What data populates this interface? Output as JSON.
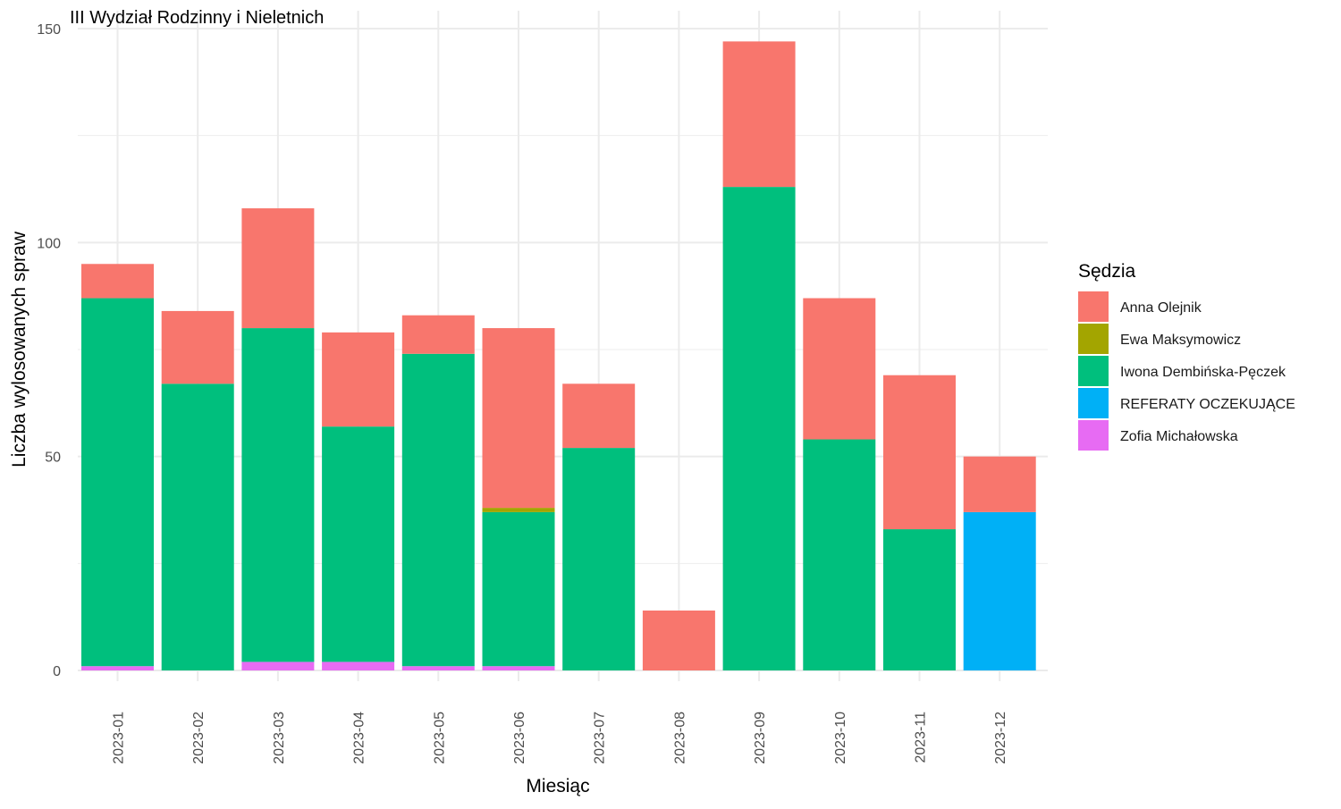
{
  "chart_data": {
    "type": "bar",
    "stacked": true,
    "title": "III Wydział Rodzinny i Nieletnich",
    "xlabel": "Miesiąc",
    "ylabel": "Liczba wylosowanych spraw",
    "ylim": [
      0,
      150
    ],
    "yticks": [
      0,
      50,
      100,
      150
    ],
    "grid": true,
    "legend_title": "Sędzia",
    "legend_position": "right",
    "categories": [
      "2023-01",
      "2023-02",
      "2023-03",
      "2023-04",
      "2023-05",
      "2023-06",
      "2023-07",
      "2023-08",
      "2023-09",
      "2023-10",
      "2023-11",
      "2023-12"
    ],
    "series": [
      {
        "name": "Zofia Michałowska",
        "color": "#E76BF3",
        "values": [
          1,
          0,
          2,
          2,
          1,
          1,
          0,
          0,
          0,
          0,
          0,
          0
        ]
      },
      {
        "name": "REFERATY OCZEKUJĄCE",
        "color": "#00B0F6",
        "values": [
          0,
          0,
          0,
          0,
          0,
          0,
          0,
          0,
          0,
          0,
          0,
          37
        ]
      },
      {
        "name": "Iwona Dembińska-Pęczek",
        "color": "#00BF7D",
        "values": [
          86,
          67,
          78,
          55,
          73,
          36,
          52,
          0,
          113,
          54,
          33,
          0
        ]
      },
      {
        "name": "Ewa Maksymowicz",
        "color": "#A3A500",
        "values": [
          0,
          0,
          0,
          0,
          0,
          1,
          0,
          0,
          0,
          0,
          0,
          0
        ]
      },
      {
        "name": "Anna Olejnik",
        "color": "#F8766D",
        "values": [
          8,
          17,
          28,
          22,
          9,
          42,
          15,
          14,
          34,
          33,
          36,
          13
        ]
      }
    ],
    "legend_order": [
      "Anna Olejnik",
      "Ewa Maksymowicz",
      "Iwona Dembińska-Pęczek",
      "REFERATY OCZEKUJĄCE",
      "Zofia Michałowska"
    ]
  }
}
